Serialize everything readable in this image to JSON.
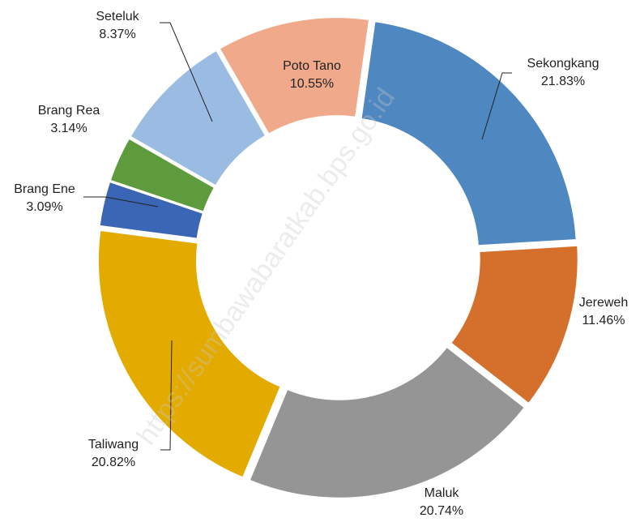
{
  "chart_data": {
    "type": "donut",
    "categories": [
      "Sekongkang",
      "Jereweh",
      "Maluk",
      "Taliwang",
      "Brang Ene",
      "Brang Rea",
      "Seteluk",
      "Poto Tano"
    ],
    "values": [
      21.83,
      11.46,
      20.74,
      20.82,
      3.09,
      3.14,
      8.37,
      10.55
    ],
    "value_labels": [
      "21.83%",
      "11.46%",
      "20.74%",
      "20.82%",
      "3.09%",
      "3.14%",
      "8.37%",
      "10.55%"
    ],
    "colors": [
      "#4f87c0",
      "#d46f2c",
      "#959595",
      "#e3aa00",
      "#3b65b5",
      "#5e9b3c",
      "#9bbce2",
      "#f0a98b"
    ],
    "watermark": "https://sumbawabaratkab.bps.go.id"
  }
}
